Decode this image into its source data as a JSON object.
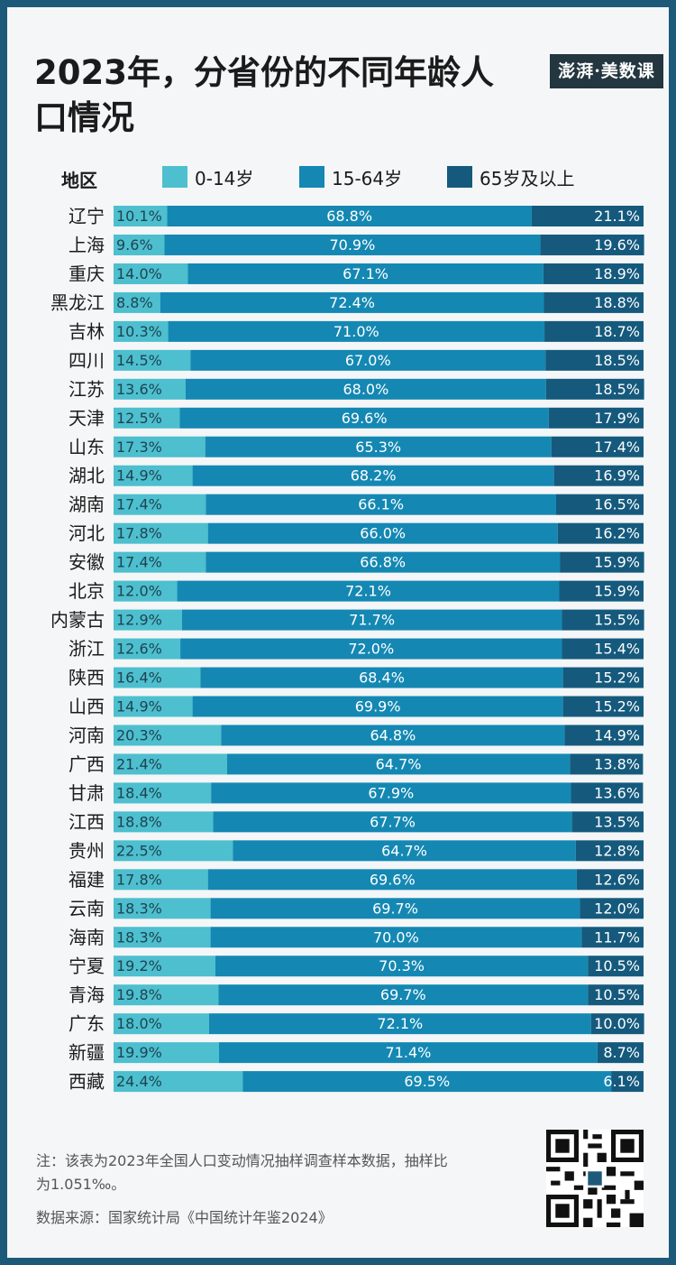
{
  "title": "2023年，分省份的不同年龄人口情况",
  "brand": "澎湃·美数课",
  "legend": {
    "region_label": "地区",
    "items": [
      {
        "label": "0-14岁",
        "color": "#4dbfcf"
      },
      {
        "label": "15-64岁",
        "color": "#1488b3"
      },
      {
        "label": "65岁及以上",
        "color": "#155a7d"
      }
    ]
  },
  "chart_data": {
    "type": "bar",
    "stacked": true,
    "orientation": "horizontal",
    "unit": "%",
    "categories": [
      "辽宁",
      "上海",
      "重庆",
      "黑龙江",
      "吉林",
      "四川",
      "江苏",
      "天津",
      "山东",
      "湖北",
      "湖南",
      "河北",
      "安徽",
      "北京",
      "内蒙古",
      "浙江",
      "陕西",
      "山西",
      "河南",
      "广西",
      "甘肃",
      "江西",
      "贵州",
      "福建",
      "云南",
      "海南",
      "宁夏",
      "青海",
      "广东",
      "新疆",
      "西藏"
    ],
    "series": [
      {
        "name": "0-14岁",
        "color": "#4dbfcf",
        "values": [
          10.1,
          9.6,
          14.0,
          8.8,
          10.3,
          14.5,
          13.6,
          12.5,
          17.3,
          14.9,
          17.4,
          17.8,
          17.4,
          12.0,
          12.9,
          12.6,
          16.4,
          14.9,
          20.3,
          21.4,
          18.4,
          18.8,
          22.5,
          17.8,
          18.3,
          18.3,
          19.2,
          19.8,
          18.0,
          19.9,
          24.4
        ]
      },
      {
        "name": "15-64岁",
        "color": "#1488b3",
        "values": [
          68.8,
          70.9,
          67.1,
          72.4,
          71.0,
          67.0,
          68.0,
          69.6,
          65.3,
          68.2,
          66.1,
          66.0,
          66.8,
          72.1,
          71.7,
          72.0,
          68.4,
          69.9,
          64.8,
          64.7,
          67.9,
          67.7,
          64.7,
          69.6,
          69.7,
          70.0,
          70.3,
          69.7,
          72.1,
          71.4,
          69.5
        ]
      },
      {
        "name": "65岁及以上",
        "color": "#155a7d",
        "values": [
          21.1,
          19.6,
          18.9,
          18.8,
          18.7,
          18.5,
          18.5,
          17.9,
          17.4,
          16.9,
          16.5,
          16.2,
          15.9,
          15.9,
          15.5,
          15.4,
          15.2,
          15.2,
          14.9,
          13.8,
          13.6,
          13.5,
          12.8,
          12.6,
          12.0,
          11.7,
          10.5,
          10.5,
          10.0,
          8.7,
          6.1
        ]
      }
    ],
    "labels": [
      [
        "10.1%",
        "68.8%",
        "21.1%"
      ],
      [
        "9.6%",
        "70.9%",
        "19.6%"
      ],
      [
        "14.0%",
        "67.1%",
        "18.9%"
      ],
      [
        "8.8%",
        "72.4%",
        "18.8%"
      ],
      [
        "10.3%",
        "71.0%",
        "18.7%"
      ],
      [
        "14.5%",
        "67.0%",
        "18.5%"
      ],
      [
        "13.6%",
        "68.0%",
        "18.5%"
      ],
      [
        "12.5%",
        "69.6%",
        "17.9%"
      ],
      [
        "17.3%",
        "65.3%",
        "17.4%"
      ],
      [
        "14.9%",
        "68.2%",
        "16.9%"
      ],
      [
        "17.4%",
        "66.1%",
        "16.5%"
      ],
      [
        "17.8%",
        "66.0%",
        "16.2%"
      ],
      [
        "17.4%",
        "66.8%",
        "15.9%"
      ],
      [
        "12.0%",
        "72.1%",
        "15.9%"
      ],
      [
        "12.9%",
        "71.7%",
        "15.5%"
      ],
      [
        "12.6%",
        "72.0%",
        "15.4%"
      ],
      [
        "16.4%",
        "68.4%",
        "15.2%"
      ],
      [
        "14.9%",
        "69.9%",
        "15.2%"
      ],
      [
        "20.3%",
        "64.8%",
        "14.9%"
      ],
      [
        "21.4%",
        "64.7%",
        "13.8%"
      ],
      [
        "18.4%",
        "67.9%",
        "13.6%"
      ],
      [
        "18.8%",
        "67.7%",
        "13.5%"
      ],
      [
        "22.5%",
        "64.7%",
        "12.8%"
      ],
      [
        "17.8%",
        "69.6%",
        "12.6%"
      ],
      [
        "18.3%",
        "69.7%",
        "12.0%"
      ],
      [
        "18.3%",
        "70.0%",
        "11.7%"
      ],
      [
        "19.2%",
        "70.3%",
        "10.5%"
      ],
      [
        "19.8%",
        "69.7%",
        "10.5%"
      ],
      [
        "18.0%",
        "72.1%",
        "10.0%"
      ],
      [
        "19.9%",
        "71.4%",
        "8.7%"
      ],
      [
        "24.4%",
        "69.5%",
        "6.1%"
      ]
    ],
    "xlim": [
      0,
      100
    ]
  },
  "note": "注：该表为2023年全国人口变动情况抽样调查样本数据，抽样比为1.051‰。",
  "source": "数据来源：国家统计局《中国统计年鉴2024》"
}
